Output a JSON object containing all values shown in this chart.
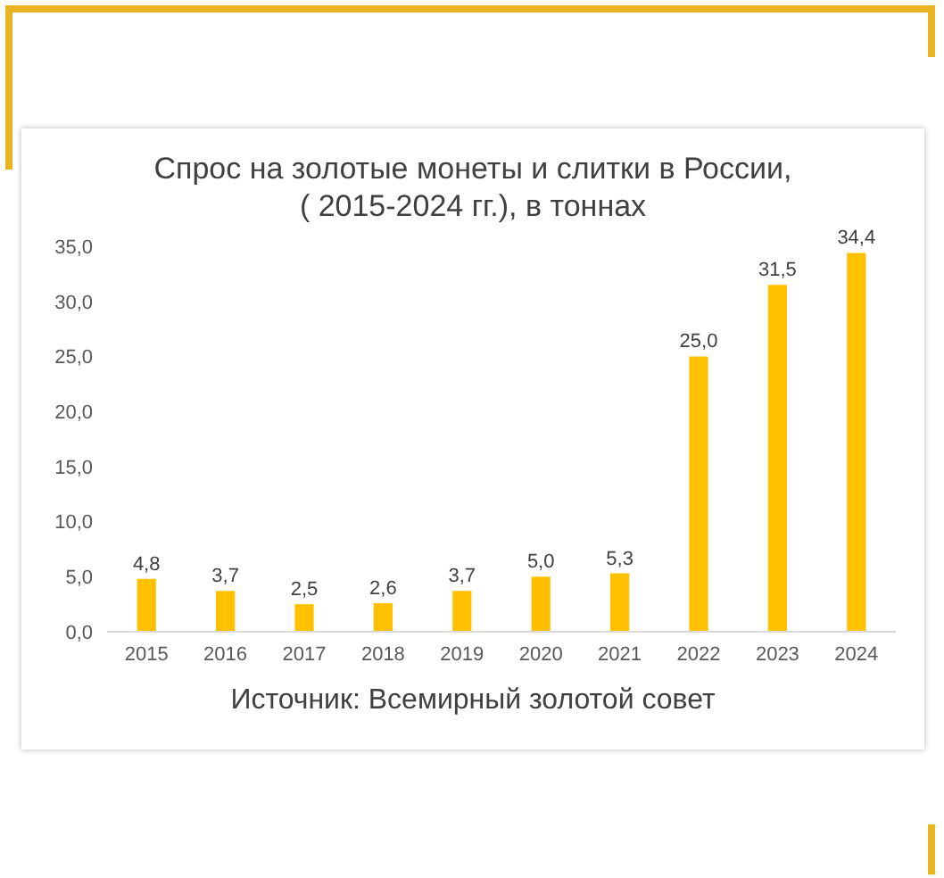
{
  "chart_data": {
    "type": "bar",
    "title": "Спрос на золотые монеты и слитки в России,\n( 2015-2024 гг.), в тоннах",
    "categories": [
      "2015",
      "2016",
      "2017",
      "2018",
      "2019",
      "2020",
      "2021",
      "2022",
      "2023",
      "2024"
    ],
    "values": [
      4.8,
      3.7,
      2.5,
      2.6,
      3.7,
      5.0,
      5.3,
      25.0,
      31.5,
      34.4
    ],
    "value_labels": [
      "4,8",
      "3,7",
      "2,5",
      "2,6",
      "3,7",
      "5,0",
      "5,3",
      "25,0",
      "31,5",
      "34,4"
    ],
    "color": "#ffc000",
    "ylim": [
      0,
      35
    ],
    "yticks": [
      {
        "value": 0,
        "label": "0,0"
      },
      {
        "value": 5,
        "label": "5,0"
      },
      {
        "value": 10,
        "label": "10,0"
      },
      {
        "value": 15,
        "label": "15,0"
      },
      {
        "value": 20,
        "label": "20,0"
      },
      {
        "value": 25,
        "label": "25,0"
      },
      {
        "value": 30,
        "label": "30,0"
      },
      {
        "value": 35,
        "label": "35,0"
      }
    ],
    "grid": false,
    "legend": false,
    "annotations": [
      "Источник: Всемирный золотой совет"
    ]
  }
}
